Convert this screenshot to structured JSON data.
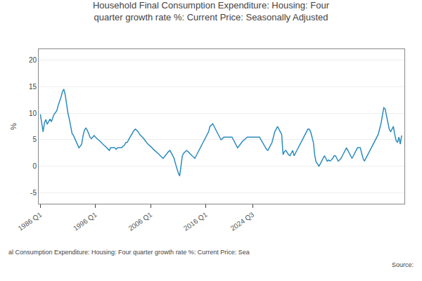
{
  "chart_data": {
    "type": "line",
    "title": "Household Final Consumption Expenditure: Housing: Four\nquarter growth rate %: Current Price: Seasonally Adjusted",
    "ylabel": "%",
    "annotations": [
      "al Consumption Expenditure: Housing: Four quarter growth rate %: Current Price: Sea",
      "Source:"
    ],
    "color": "#2b8cbe",
    "grid": true,
    "xlim": [
      1985.7,
      2052.0
    ],
    "xticks": [
      {
        "value": 1986,
        "label": "1986 Q1"
      },
      {
        "value": 1996,
        "label": "1996 Q1"
      },
      {
        "value": 2006,
        "label": "2006 Q1"
      },
      {
        "value": 2016,
        "label": "2016 Q1"
      },
      {
        "value": 2024.5,
        "label": "2024 Q3"
      }
    ],
    "ylim": [
      -7,
      22
    ],
    "yticks": [
      -5,
      0,
      5,
      10,
      15,
      20
    ],
    "x": [
      1986,
      1986.25,
      1986.5,
      1986.75,
      1987,
      1987.25,
      1987.5,
      1987.75,
      1988,
      1988.25,
      1988.5,
      1988.75,
      1989,
      1989.25,
      1989.5,
      1989.75,
      1990,
      1990.25,
      1990.5,
      1990.75,
      1991,
      1991.25,
      1991.5,
      1991.75,
      1992,
      1992.25,
      1992.5,
      1992.75,
      1993,
      1993.25,
      1993.5,
      1993.75,
      1994,
      1994.25,
      1994.5,
      1994.75,
      1995,
      1995.25,
      1995.5,
      1995.75,
      1996,
      1996.25,
      1996.5,
      1996.75,
      1997,
      1997.25,
      1997.5,
      1997.75,
      1998,
      1998.25,
      1998.5,
      1998.75,
      1999,
      1999.25,
      1999.5,
      1999.75,
      2000,
      2000.25,
      2000.5,
      2000.75,
      2001,
      2001.25,
      2001.5,
      2001.75,
      2002,
      2002.25,
      2002.5,
      2002.75,
      2003,
      2003.25,
      2003.5,
      2003.75,
      2004,
      2004.25,
      2004.5,
      2004.75,
      2005,
      2005.25,
      2005.5,
      2005.75,
      2006,
      2006.25,
      2006.5,
      2006.75,
      2007,
      2007.25,
      2007.5,
      2007.75,
      2008,
      2008.25,
      2008.5,
      2008.75,
      2009,
      2009.25,
      2009.5,
      2009.75,
      2010,
      2010.25,
      2010.5,
      2010.75,
      2011,
      2011.25,
      2011.5,
      2011.75,
      2012,
      2012.25,
      2012.5,
      2012.75,
      2013,
      2013.25,
      2013.5,
      2013.75,
      2014,
      2014.25,
      2014.5,
      2014.75,
      2015,
      2015.25,
      2015.5,
      2015.75,
      2016,
      2016.25,
      2016.5,
      2016.75,
      2017,
      2017.25,
      2017.5,
      2017.75,
      2018,
      2018.25,
      2018.5,
      2018.75,
      2019,
      2019.25,
      2019.5,
      2019.75,
      2020,
      2020.25,
      2020.5,
      2020.75,
      2021,
      2021.25,
      2021.5,
      2021.75,
      2022,
      2022.25,
      2022.5,
      2022.75,
      2023,
      2023.25,
      2023.5,
      2023.75,
      2024,
      2024.25,
      2024.5,
      2024.75,
      2025,
      2025.25,
      2025.5,
      2025.75,
      2026,
      2026.25,
      2026.5,
      2026.75,
      2027,
      2027.25,
      2027.5,
      2027.75,
      2028,
      2028.25,
      2028.5,
      2028.75,
      2029,
      2029.25,
      2029.5,
      2029.75,
      2030,
      2030.25,
      2030.5,
      2030.75,
      2031,
      2031.25,
      2031.5,
      2031.75,
      2032,
      2032.25,
      2032.5,
      2032.75,
      2033,
      2033.25,
      2033.5,
      2033.75,
      2034,
      2034.25,
      2034.5,
      2034.75,
      2035,
      2035.25,
      2035.5,
      2035.75,
      2036,
      2036.25,
      2036.5,
      2036.75,
      2037,
      2037.25,
      2037.5,
      2037.75,
      2038,
      2038.25,
      2038.5,
      2038.75,
      2039,
      2039.25,
      2039.5,
      2039.75,
      2040,
      2040.25,
      2040.5,
      2040.75,
      2041,
      2041.25,
      2041.5,
      2041.75,
      2042,
      2042.25,
      2042.5,
      2042.75,
      2043,
      2043.25,
      2043.5,
      2043.75,
      2044,
      2044.25,
      2044.5,
      2044.75,
      2045,
      2045.25,
      2045.5,
      2045.75,
      2046,
      2046.25,
      2046.5,
      2046.75,
      2047,
      2047.25,
      2047.5,
      2047.75,
      2048,
      2048.25,
      2048.5,
      2048.75,
      2049,
      2049.25,
      2049.5,
      2049.75,
      2050,
      2050.25,
      2050.5,
      2050.75,
      2051,
      2051.25,
      2051.5
    ],
    "values": [
      9.8,
      8.3,
      6.5,
      8.2,
      8.8,
      7.9,
      8.5,
      8.9,
      8.4,
      9.1,
      9.8,
      10.1,
      10.5,
      11.5,
      12.2,
      13.0,
      14.0,
      14.5,
      13.5,
      11.5,
      10.0,
      8.9,
      7.5,
      6.2,
      5.8,
      5.2,
      4.5,
      4.0,
      3.5,
      3.8,
      4.2,
      5.8,
      6.8,
      7.2,
      6.8,
      6.2,
      5.5,
      5.2,
      5.5,
      5.8,
      5.5,
      5.2,
      5.0,
      4.8,
      4.5,
      4.2,
      4.0,
      3.8,
      3.5,
      3.2,
      3.0,
      3.5,
      3.5,
      3.5,
      3.5,
      3.2,
      3.5,
      3.5,
      3.5,
      3.5,
      3.8,
      4.0,
      4.5,
      4.5,
      5.0,
      5.5,
      6.0,
      6.5,
      6.8,
      7.0,
      6.8,
      6.5,
      6.0,
      5.8,
      5.5,
      5.2,
      4.8,
      4.5,
      4.2,
      4.0,
      3.8,
      3.5,
      3.2,
      3.0,
      2.8,
      2.5,
      2.3,
      2.0,
      1.8,
      1.5,
      1.8,
      2.2,
      2.5,
      2.8,
      3.0,
      2.5,
      2.0,
      1.5,
      0.5,
      -0.5,
      -1.2,
      -1.8,
      -0.2,
      2.0,
      2.5,
      2.8,
      3.0,
      2.8,
      2.5,
      2.2,
      2.0,
      1.8,
      1.5,
      2.0,
      2.5,
      3.0,
      3.5,
      4.0,
      4.5,
      5.0,
      5.5,
      6.0,
      6.5,
      7.5,
      7.8,
      8.0,
      7.5,
      7.0,
      6.5,
      6.0,
      5.5,
      5.0,
      5.2,
      5.5,
      5.5,
      5.5,
      5.5,
      5.5,
      5.5,
      5.5,
      5.0,
      4.5,
      4.0,
      3.5,
      3.8,
      4.2,
      4.5,
      4.8,
      5.0,
      5.2,
      5.5,
      5.5,
      5.5,
      5.5,
      5.5,
      5.5,
      5.5,
      5.5,
      5.5,
      5.5,
      5.0,
      4.5,
      4.0,
      3.5,
      3.2,
      3.0,
      3.5,
      4.0,
      4.5,
      5.5,
      6.5,
      7.0,
      7.5,
      7.0,
      6.5,
      6.0,
      2.2,
      2.8,
      3.0,
      2.5,
      2.2,
      2.0,
      2.5,
      3.0,
      2.0,
      2.5,
      3.0,
      3.5,
      4.0,
      4.5,
      5.0,
      5.5,
      6.0,
      6.5,
      7.0,
      7.0,
      6.5,
      5.5,
      4.5,
      2.0,
      0.8,
      0.5,
      0.0,
      0.5,
      1.0,
      1.5,
      2.0,
      1.5,
      1.0,
      1.2,
      1.0,
      1.2,
      1.5,
      2.0,
      2.0,
      1.5,
      1.0,
      1.2,
      1.5,
      2.0,
      2.5,
      3.0,
      3.5,
      3.0,
      2.5,
      2.0,
      1.5,
      2.0,
      2.5,
      3.0,
      3.5,
      3.5,
      3.5,
      2.5,
      1.5,
      1.0,
      1.5,
      2.0,
      2.5,
      3.0,
      3.5,
      4.0,
      4.5,
      5.0,
      5.5,
      6.0,
      7.0,
      8.0,
      9.5,
      11.0,
      10.8,
      9.5,
      8.0,
      7.0,
      6.5,
      7.0,
      7.5,
      6.0,
      4.8,
      4.5,
      5.5,
      4.2,
      5.8
    ]
  }
}
